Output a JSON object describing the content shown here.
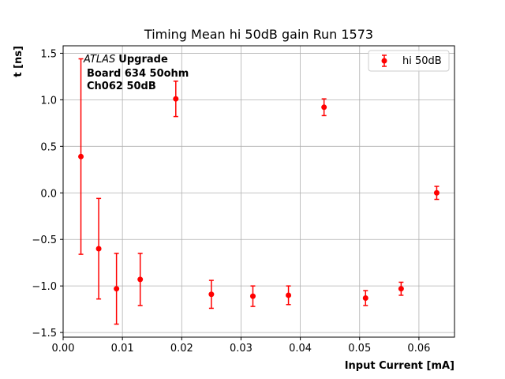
{
  "chart_data": {
    "type": "scatter",
    "title": "Timing Mean hi 50dB gain Run 1573",
    "xlabel": "Input Current [mA]",
    "ylabel": "t [ns]",
    "xlim": [
      0.0,
      0.066
    ],
    "ylim": [
      -1.55,
      1.58
    ],
    "xticks": [
      0.0,
      0.01,
      0.02,
      0.03,
      0.04,
      0.05,
      0.06
    ],
    "xtick_labels": [
      "0.00",
      "0.01",
      "0.02",
      "0.03",
      "0.04",
      "0.05",
      "0.06"
    ],
    "yticks": [
      -1.5,
      -1.0,
      -0.5,
      0.0,
      0.5,
      1.0,
      1.5
    ],
    "ytick_labels": [
      "−1.5",
      "−1.0",
      "−0.5",
      "0.0",
      "0.5",
      "1.0",
      "1.5"
    ],
    "grid": true,
    "legend_position": "top-right",
    "annotation": {
      "experiment": "ATLAS",
      "tag": "Upgrade",
      "line2": "Board 634 50ohm",
      "line3": "Ch062 50dB"
    },
    "series": [
      {
        "name": "hi 50dB",
        "color": "#ff0000",
        "marker": "circle",
        "points": [
          {
            "x": 0.003,
            "y": 0.39,
            "err": 1.05
          },
          {
            "x": 0.006,
            "y": -0.6,
            "err": 0.54
          },
          {
            "x": 0.009,
            "y": -1.03,
            "err": 0.38
          },
          {
            "x": 0.013,
            "y": -0.93,
            "err": 0.28
          },
          {
            "x": 0.019,
            "y": 1.01,
            "err": 0.19
          },
          {
            "x": 0.025,
            "y": -1.09,
            "err": 0.15
          },
          {
            "x": 0.032,
            "y": -1.11,
            "err": 0.11
          },
          {
            "x": 0.038,
            "y": -1.1,
            "err": 0.1
          },
          {
            "x": 0.044,
            "y": 0.92,
            "err": 0.09
          },
          {
            "x": 0.051,
            "y": -1.13,
            "err": 0.08
          },
          {
            "x": 0.057,
            "y": -1.03,
            "err": 0.07
          },
          {
            "x": 0.063,
            "y": 0.0,
            "err": 0.07
          }
        ]
      }
    ]
  }
}
